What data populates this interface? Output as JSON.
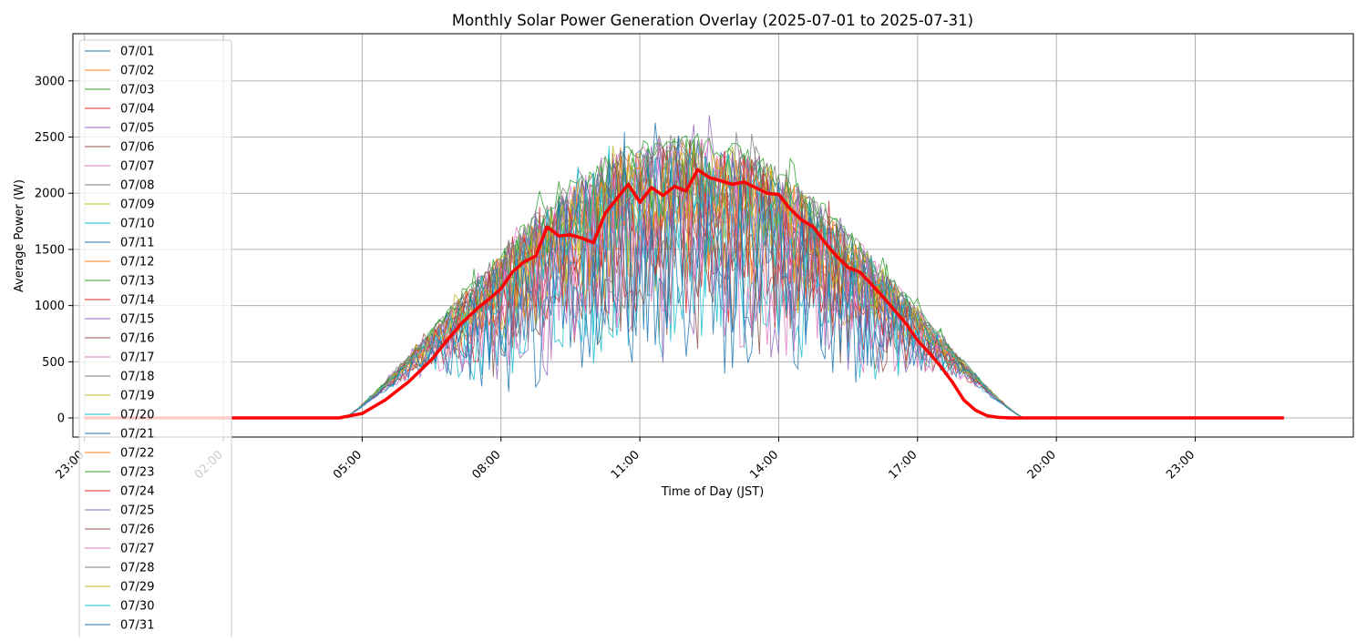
{
  "chart_data": {
    "type": "line",
    "title": "Monthly Solar Power Generation Overlay (2025-07-01 to 2025-07-31)",
    "xlabel": "Time of Day (JST)",
    "ylabel": "Average Power (W)",
    "xlim": [
      "22:45",
      "26:25"
    ],
    "ylim": [
      -170,
      3420
    ],
    "x_ticks": [
      "23:00",
      "02:00",
      "05:00",
      "08:00",
      "11:00",
      "14:00",
      "17:00",
      "20:00",
      "23:00"
    ],
    "y_ticks": [
      0,
      500,
      1000,
      1500,
      2000,
      2500,
      3000
    ],
    "grid": true,
    "legend_position": "upper-left",
    "x_start": "23:00",
    "x_end": "24:55",
    "series": [
      {
        "name": "07/01",
        "color": "#1f77b4",
        "peak": 2480,
        "noise": 0.25
      },
      {
        "name": "07/02",
        "color": "#ff7f0e",
        "peak": 2450,
        "noise": 0.35
      },
      {
        "name": "07/03",
        "color": "#2ca02c",
        "peak": 2520,
        "noise": 0.2
      },
      {
        "name": "07/04",
        "color": "#d62728",
        "peak": 2400,
        "noise": 0.55
      },
      {
        "name": "07/05",
        "color": "#9467bd",
        "peak": 2500,
        "noise": 0.3
      },
      {
        "name": "07/06",
        "color": "#8c564b",
        "peak": 2460,
        "noise": 0.45
      },
      {
        "name": "07/07",
        "color": "#e377c2",
        "peak": 2510,
        "noise": 0.15
      },
      {
        "name": "07/08",
        "color": "#7f7f7f",
        "peak": 2530,
        "noise": 0.6
      },
      {
        "name": "07/09",
        "color": "#bcbd22",
        "peak": 2420,
        "noise": 0.4
      },
      {
        "name": "07/10",
        "color": "#17becf",
        "peak": 2380,
        "noise": 0.7
      },
      {
        "name": "07/11",
        "color": "#1f77b4",
        "peak": 2470,
        "noise": 0.35
      },
      {
        "name": "07/12",
        "color": "#ff7f0e",
        "peak": 2440,
        "noise": 0.5
      },
      {
        "name": "07/13",
        "color": "#2ca02c",
        "peak": 2540,
        "noise": 0.1
      },
      {
        "name": "07/14",
        "color": "#d62728",
        "peak": 2410,
        "noise": 0.65
      },
      {
        "name": "07/15",
        "color": "#9467bd",
        "peak": 2490,
        "noise": 0.3
      },
      {
        "name": "07/16",
        "color": "#8c564b",
        "peak": 2430,
        "noise": 0.75
      },
      {
        "name": "07/17",
        "color": "#e377c2",
        "peak": 2500,
        "noise": 0.45
      },
      {
        "name": "07/18",
        "color": "#7f7f7f",
        "peak": 2520,
        "noise": 0.2
      },
      {
        "name": "07/19",
        "color": "#bcbd22",
        "peak": 2460,
        "noise": 0.55
      },
      {
        "name": "07/20",
        "color": "#17becf",
        "peak": 2390,
        "noise": 0.8
      },
      {
        "name": "07/21",
        "color": "#1f77b4",
        "peak": 2420,
        "noise": 0.7
      },
      {
        "name": "07/22",
        "color": "#ff7f0e",
        "peak": 2480,
        "noise": 0.4
      },
      {
        "name": "07/23",
        "color": "#2ca02c",
        "peak": 2510,
        "noise": 0.3
      },
      {
        "name": "07/24",
        "color": "#d62728",
        "peak": 2450,
        "noise": 0.5
      },
      {
        "name": "07/25",
        "color": "#9467bd",
        "peak": 2400,
        "noise": 0.8
      },
      {
        "name": "07/26",
        "color": "#8c564b",
        "peak": 2470,
        "noise": 0.6
      },
      {
        "name": "07/27",
        "color": "#e377c2",
        "peak": 2440,
        "noise": 0.75
      },
      {
        "name": "07/28",
        "color": "#7f7f7f",
        "peak": 2530,
        "noise": 0.25
      },
      {
        "name": "07/29",
        "color": "#bcbd22",
        "peak": 2500,
        "noise": 0.35
      },
      {
        "name": "07/30",
        "color": "#17becf",
        "peak": 2460,
        "noise": 0.45
      },
      {
        "name": "07/31",
        "color": "#1f77b4",
        "peak": 2420,
        "noise": 0.85
      }
    ],
    "average_series": {
      "color": "#ff0000",
      "x": [
        "04:30",
        "05:00",
        "05:30",
        "06:00",
        "06:30",
        "06:50",
        "07:10",
        "07:30",
        "07:45",
        "08:00",
        "08:15",
        "08:30",
        "08:45",
        "09:00",
        "09:15",
        "09:30",
        "09:45",
        "10:00",
        "10:15",
        "10:30",
        "10:45",
        "11:00",
        "11:15",
        "11:30",
        "11:45",
        "12:00",
        "12:15",
        "12:30",
        "12:45",
        "13:00",
        "13:15",
        "13:30",
        "13:45",
        "14:00",
        "14:15",
        "14:30",
        "14:45",
        "15:00",
        "15:15",
        "15:30",
        "15:45",
        "16:00",
        "16:15",
        "16:30",
        "16:45",
        "17:00",
        "17:15",
        "17:30",
        "17:45",
        "18:00",
        "18:15",
        "18:30",
        "18:45",
        "19:00",
        "19:30"
      ],
      "y": [
        0,
        40,
        160,
        320,
        520,
        690,
        850,
        980,
        1060,
        1150,
        1300,
        1390,
        1440,
        1700,
        1620,
        1630,
        1600,
        1560,
        1820,
        1950,
        2080,
        1920,
        2050,
        1980,
        2060,
        2020,
        2210,
        2140,
        2110,
        2080,
        2100,
        2050,
        2000,
        1990,
        1860,
        1760,
        1700,
        1560,
        1440,
        1340,
        1300,
        1190,
        1080,
        960,
        840,
        690,
        580,
        460,
        320,
        160,
        70,
        20,
        5,
        0,
        0
      ]
    }
  }
}
